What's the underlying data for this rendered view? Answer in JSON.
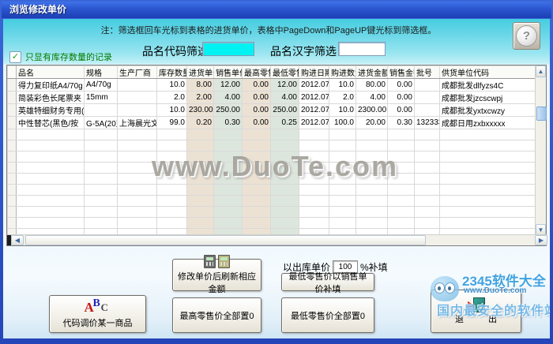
{
  "window": {
    "title": "浏览修改单价"
  },
  "note": "注：筛选框回车光标到表格的进货单价，表格中PageDown和PageUP键光标到筛选框。",
  "filters": {
    "stock_checkbox_label": "只显有库存数量的记录",
    "stock_checkbox_checked": "✓",
    "code_filter_label": "品名代码筛选",
    "name_filter_label": "品名汉字筛选",
    "code_filter_value": "",
    "name_filter_value": ""
  },
  "table": {
    "columns": [
      "品名",
      "规格",
      "生产厂商",
      "库存数量",
      "进货单价",
      "销售单价",
      "最高零售价",
      "最低零售价",
      "购进日期",
      "购进数量",
      "进货金额",
      "销售金额",
      "批号",
      "供货单位代码"
    ],
    "rows": [
      [
        "得力复印纸A4/70g",
        "A4/70g",
        "",
        "10.0",
        "8.00",
        "12.00",
        "0.00",
        "12.00",
        "2012.07.",
        "10.0",
        "80.00",
        "0.00",
        "",
        "成都批发dlfyzs4C"
      ],
      [
        "简装彩色长尾票夹",
        "15mm",
        "",
        "2.0",
        "2.00",
        "4.00",
        "0.00",
        "4.00",
        "2012.07.",
        "2.0",
        "4.00",
        "0.00",
        "",
        "成都批发jzcscwpj"
      ],
      [
        "英雄特细财务专用(",
        "",
        "",
        "10.0",
        "230.00",
        "250.00",
        "0.00",
        "250.00",
        "2012.07.",
        "10.0",
        "2300.00",
        "0.00",
        "",
        "成都批发yxtxcwzy"
      ],
      [
        "中性替芯(黑色/按",
        "G-5A(20支",
        "上海晨光文具",
        "99.0",
        "0.20",
        "0.30",
        "0.00",
        "0.25",
        "2012.07.",
        "100.0",
        "20.00",
        "0.30",
        "132333",
        "成都日用zxbxxxxx"
      ]
    ],
    "empty_row_count": 10
  },
  "actions": {
    "refresh_button": "修改单价后刷新相应金额",
    "outbound_prefix": "以出库单价",
    "outbound_value": "100",
    "outbound_suffix": "%补填",
    "min_retail_fill_button": "最低零售价以销售单价补填",
    "code_adjust_button": "代码调价某一商品",
    "max_retail_zero_button": "最高零售价全部置0",
    "min_retail_zero_button": "最低零售价全部置0",
    "exit_button": "退 出"
  },
  "help": {
    "glyph": "?"
  },
  "watermarks": {
    "center": "www.DuoTe.com",
    "corner_line1": "2345软件大全",
    "corner_line2": "www.DuoTe.com",
    "corner_line3": "国内最安全的软件站"
  },
  "colors": {
    "titlebar_blue": "#2b55cf",
    "form_teal": "#6ed8e8",
    "cyan_input": "#00f2f2",
    "checkbox_green": "#007c00",
    "tint_tan": "#ece2d4",
    "tint_green": "#dde6dd"
  }
}
